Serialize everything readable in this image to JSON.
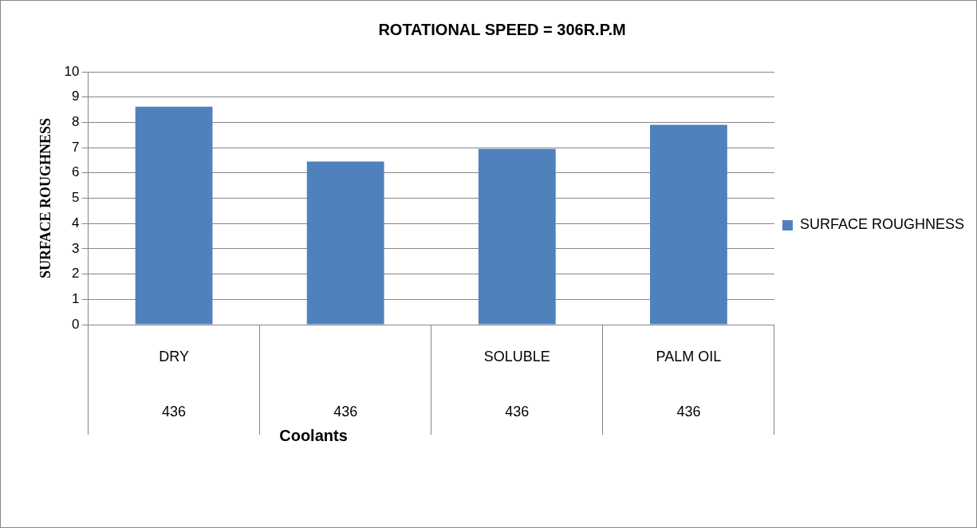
{
  "chart_data": {
    "type": "bar",
    "title": "ROTATIONAL SPEED = 306R.P.M",
    "xlabel": "Coolants",
    "ylabel": "SURFACE ROUGHNESS",
    "categories": [
      "DRY",
      null,
      "SOLUBLE",
      "PALM OIL"
    ],
    "series": [
      {
        "name": "SURFACE ROUGHNESS",
        "color": "#4f81bd",
        "values": [
          8.62,
          6.45,
          6.95,
          7.9
        ]
      }
    ],
    "annotations": [
      "436",
      "436",
      "436",
      "436"
    ],
    "ylim": [
      0,
      10
    ],
    "yticks": [
      0,
      1,
      2,
      3,
      4,
      5,
      6,
      7,
      8,
      9,
      10
    ],
    "grid": "y",
    "legend": "right"
  }
}
